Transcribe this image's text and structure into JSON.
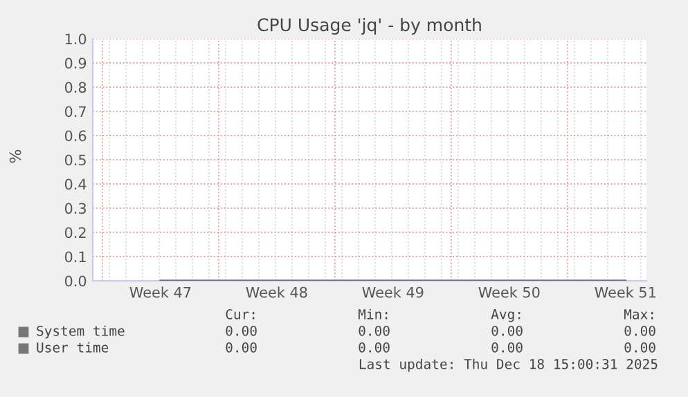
{
  "chart_data": {
    "type": "line",
    "title": "CPU Usage 'jq' - by month",
    "ylabel": "%",
    "categories": [
      "Week 47",
      "Week 48",
      "Week 49",
      "Week 50",
      "Week 51"
    ],
    "series": [
      {
        "name": "System time",
        "color": "#777777",
        "values": [
          0,
          0,
          0,
          0,
          0
        ]
      },
      {
        "name": "User time",
        "color": "#777777",
        "values": [
          0,
          0,
          0,
          0,
          0
        ]
      }
    ],
    "ylim": [
      0,
      1.0
    ],
    "yticks": [
      {
        "value": 0,
        "label": "0.0"
      },
      {
        "value": 0.1,
        "label": "0.1"
      },
      {
        "value": 0.2,
        "label": "0.2"
      },
      {
        "value": 0.3,
        "label": "0.3"
      },
      {
        "value": 0.4,
        "label": "0.4"
      },
      {
        "value": 0.5,
        "label": "0.5"
      },
      {
        "value": 0.6,
        "label": "0.6"
      },
      {
        "value": 0.7,
        "label": "0.7"
      },
      {
        "value": 0.8,
        "label": "0.8"
      },
      {
        "value": 0.9,
        "label": "0.9"
      },
      {
        "value": 1.0,
        "label": "1.0"
      }
    ],
    "grid": true,
    "legend": "bottom",
    "annotations": [
      "Cur:",
      "Min:",
      "Avg:",
      "Max:",
      "0.00",
      "0.00",
      "0.00",
      "0.00",
      "0.00",
      "0.00",
      "0.00",
      "0.00",
      "Last update: Thu Dec 18 15:00:31 2025"
    ]
  }
}
